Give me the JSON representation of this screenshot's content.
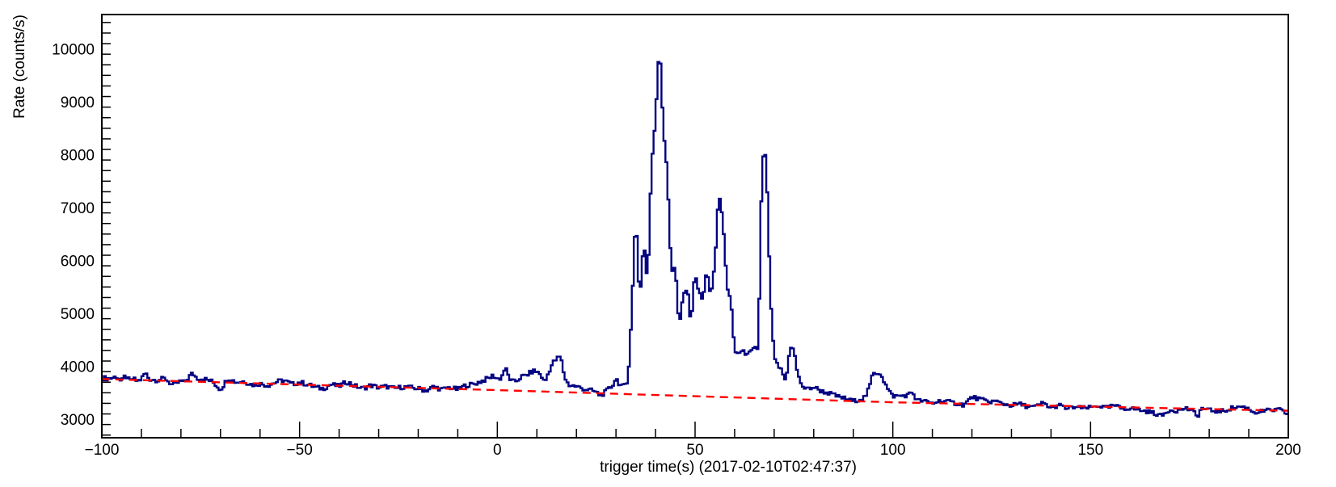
{
  "chart_data": {
    "type": "line",
    "title": "",
    "xlabel": "trigger time(s) (2017-02-10T02:47:37)",
    "ylabel": "Rate (counts/s)",
    "xlim": [
      -100,
      200
    ],
    "ylim": [
      2650,
      10650
    ],
    "x_ticks": [
      "−100",
      "−50",
      "0",
      "50",
      "100",
      "150",
      "200"
    ],
    "y_ticks": [
      "3000",
      "4000",
      "5000",
      "6000",
      "7000",
      "8000",
      "9000",
      "10000"
    ],
    "grid": false,
    "legend": "none",
    "bin_width": 0.5,
    "series": [
      {
        "style": "step",
        "color": "#000080",
        "points": [
          [
            -100,
            3780
          ],
          [
            -98,
            3770
          ],
          [
            -96,
            3810
          ],
          [
            -95,
            3700
          ],
          [
            -94,
            3830
          ],
          [
            -93,
            3720
          ],
          [
            -92,
            3760
          ],
          [
            -91,
            3720
          ],
          [
            -90,
            3760
          ],
          [
            -89,
            3880
          ],
          [
            -88,
            3760
          ],
          [
            -86,
            3740
          ],
          [
            -84,
            3770
          ],
          [
            -82,
            3640
          ],
          [
            -80,
            3720
          ],
          [
            -79,
            3690
          ],
          [
            -78,
            3800
          ],
          [
            -77,
            3870
          ],
          [
            -76,
            3780
          ],
          [
            -74,
            3760
          ],
          [
            -72,
            3710
          ],
          [
            -70,
            3560
          ],
          [
            -68,
            3780
          ],
          [
            -66,
            3700
          ],
          [
            -64,
            3720
          ],
          [
            -62,
            3650
          ],
          [
            -60,
            3670
          ],
          [
            -58,
            3640
          ],
          [
            -56,
            3700
          ],
          [
            -54,
            3740
          ],
          [
            -52,
            3660
          ],
          [
            -50,
            3700
          ],
          [
            -48,
            3660
          ],
          [
            -46,
            3600
          ],
          [
            -44,
            3580
          ],
          [
            -42,
            3660
          ],
          [
            -40,
            3620
          ],
          [
            -38,
            3710
          ],
          [
            -36,
            3630
          ],
          [
            -34,
            3580
          ],
          [
            -32,
            3640
          ],
          [
            -30,
            3600
          ],
          [
            -28,
            3620
          ],
          [
            -26,
            3580
          ],
          [
            -24,
            3610
          ],
          [
            -22,
            3600
          ],
          [
            -20,
            3580
          ],
          [
            -18,
            3540
          ],
          [
            -16,
            3620
          ],
          [
            -14,
            3560
          ],
          [
            -12,
            3600
          ],
          [
            -10,
            3560
          ],
          [
            -8,
            3640
          ],
          [
            -6,
            3660
          ],
          [
            -4,
            3720
          ],
          [
            -2,
            3780
          ],
          [
            -1,
            3830
          ],
          [
            0,
            3760
          ],
          [
            1,
            3780
          ],
          [
            2,
            3980
          ],
          [
            3,
            3780
          ],
          [
            4,
            3700
          ],
          [
            5,
            3730
          ],
          [
            6,
            3800
          ],
          [
            7,
            3820
          ],
          [
            8,
            3860
          ],
          [
            9,
            3910
          ],
          [
            10,
            3900
          ],
          [
            11,
            3840
          ],
          [
            12,
            3690
          ],
          [
            13,
            3900
          ],
          [
            14,
            4060
          ],
          [
            15,
            4140
          ],
          [
            16,
            4190
          ],
          [
            17,
            3800
          ],
          [
            18,
            3650
          ],
          [
            20,
            3620
          ],
          [
            22,
            3570
          ],
          [
            24,
            3540
          ],
          [
            25,
            3510
          ],
          [
            26,
            3450
          ],
          [
            27,
            3490
          ],
          [
            28,
            3560
          ],
          [
            29,
            3620
          ],
          [
            30,
            3780
          ],
          [
            31,
            3650
          ],
          [
            32,
            3610
          ],
          [
            33,
            3700
          ],
          [
            34,
            5050
          ],
          [
            35,
            6900
          ],
          [
            36,
            5200
          ],
          [
            37,
            6400
          ],
          [
            38,
            5550
          ],
          [
            39,
            7800
          ],
          [
            40,
            8700
          ],
          [
            41,
            10150
          ],
          [
            42,
            8500
          ],
          [
            43,
            7600
          ],
          [
            44,
            5800
          ],
          [
            45,
            5900
          ],
          [
            46,
            4700
          ],
          [
            47,
            5350
          ],
          [
            48,
            5480
          ],
          [
            49,
            4820
          ],
          [
            50,
            5800
          ],
          [
            51,
            5380
          ],
          [
            52,
            5250
          ],
          [
            53,
            5850
          ],
          [
            54,
            5300
          ],
          [
            55,
            5900
          ],
          [
            56,
            7300
          ],
          [
            57,
            6800
          ],
          [
            58,
            5550
          ],
          [
            59,
            5300
          ],
          [
            60,
            4250
          ],
          [
            61,
            4200
          ],
          [
            62,
            4330
          ],
          [
            63,
            4200
          ],
          [
            64,
            4280
          ],
          [
            65,
            4330
          ],
          [
            66,
            4340
          ],
          [
            67,
            8000
          ],
          [
            68,
            7940
          ],
          [
            69,
            5400
          ],
          [
            70,
            4130
          ],
          [
            71,
            4020
          ],
          [
            72,
            3900
          ],
          [
            73,
            3700
          ],
          [
            74,
            4400
          ],
          [
            75,
            4300
          ],
          [
            76,
            3820
          ],
          [
            77,
            3650
          ],
          [
            78,
            3560
          ],
          [
            80,
            3610
          ],
          [
            82,
            3530
          ],
          [
            84,
            3490
          ],
          [
            86,
            3430
          ],
          [
            88,
            3390
          ],
          [
            90,
            3340
          ],
          [
            92,
            3390
          ],
          [
            93,
            3420
          ],
          [
            94,
            3580
          ],
          [
            95,
            3870
          ],
          [
            96,
            3880
          ],
          [
            97,
            3870
          ],
          [
            98,
            3680
          ],
          [
            99,
            3530
          ],
          [
            100,
            3440
          ],
          [
            102,
            3440
          ],
          [
            104,
            3460
          ],
          [
            105,
            3520
          ],
          [
            106,
            3360
          ],
          [
            108,
            3340
          ],
          [
            110,
            3300
          ],
          [
            112,
            3350
          ],
          [
            114,
            3330
          ],
          [
            116,
            3300
          ],
          [
            118,
            3270
          ],
          [
            120,
            3420
          ],
          [
            122,
            3380
          ],
          [
            124,
            3330
          ],
          [
            126,
            3340
          ],
          [
            128,
            3290
          ],
          [
            130,
            3260
          ],
          [
            132,
            3290
          ],
          [
            134,
            3240
          ],
          [
            136,
            3230
          ],
          [
            138,
            3310
          ],
          [
            140,
            3210
          ],
          [
            142,
            3270
          ],
          [
            144,
            3200
          ],
          [
            146,
            3230
          ],
          [
            148,
            3210
          ],
          [
            150,
            3220
          ],
          [
            152,
            3260
          ],
          [
            154,
            3210
          ],
          [
            156,
            3260
          ],
          [
            158,
            3200
          ],
          [
            160,
            3210
          ],
          [
            162,
            3180
          ],
          [
            164,
            3150
          ],
          [
            166,
            3120
          ],
          [
            168,
            3060
          ],
          [
            170,
            3180
          ],
          [
            172,
            3160
          ],
          [
            174,
            3210
          ],
          [
            176,
            3150
          ],
          [
            177,
            3040
          ],
          [
            178,
            3210
          ],
          [
            180,
            3170
          ],
          [
            182,
            3150
          ],
          [
            184,
            3160
          ],
          [
            186,
            3220
          ],
          [
            188,
            3240
          ],
          [
            190,
            3200
          ],
          [
            191,
            3140
          ],
          [
            192,
            3130
          ],
          [
            194,
            3160
          ],
          [
            196,
            3170
          ],
          [
            198,
            3180
          ],
          [
            199,
            3120
          ],
          [
            200,
            3110
          ]
        ]
      },
      {
        "style": "dashed",
        "color": "#ff0000",
        "points": [
          [
            -100,
            3760
          ],
          [
            0,
            3550
          ],
          [
            100,
            3320
          ],
          [
            200,
            3160
          ]
        ]
      }
    ]
  }
}
